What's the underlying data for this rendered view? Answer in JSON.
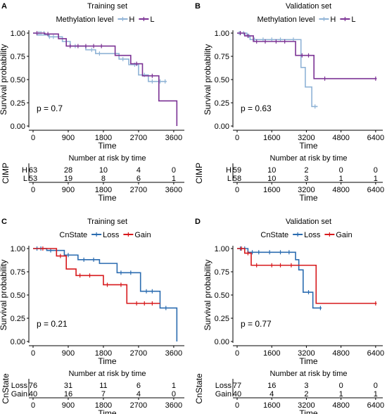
{
  "panels": [
    {
      "letter": "A",
      "title": "Training set",
      "legend_title": "Methylation level",
      "groups": [
        {
          "name": "H",
          "color": "#8fb3d6"
        },
        {
          "name": "L",
          "color": "#7b3294"
        }
      ],
      "pvalue": "p = 0.7",
      "ylabel": "Survival probability",
      "xlabel": "Time",
      "risk_title": "Number at risk by time",
      "risk_ylabel": "CIMP",
      "risk_counts": [
        [
          63,
          28,
          10,
          4,
          0
        ],
        [
          53,
          19,
          8,
          6,
          1
        ]
      ]
    },
    {
      "letter": "B",
      "title": "Validation set",
      "legend_title": "Methylation level",
      "groups": [
        {
          "name": "H",
          "color": "#8fb3d6"
        },
        {
          "name": "L",
          "color": "#7b3294"
        }
      ],
      "pvalue": "p = 0.63",
      "ylabel": "Survival probability",
      "xlabel": "Time",
      "risk_title": "Number at risk by time",
      "risk_ylabel": "CIMP",
      "risk_counts": [
        [
          59,
          10,
          2,
          0,
          0
        ],
        [
          58,
          10,
          3,
          1,
          1
        ]
      ]
    },
    {
      "letter": "C",
      "title": "Training set",
      "legend_title": "CnState",
      "groups": [
        {
          "name": "Loss",
          "color": "#2b6cb0"
        },
        {
          "name": "Gain",
          "color": "#d7191c"
        }
      ],
      "pvalue": "p = 0.21",
      "ylabel": "Survival probability",
      "xlabel": "Time",
      "risk_title": "Number at risk by time",
      "risk_ylabel": "CnState",
      "risk_counts": [
        [
          76,
          31,
          11,
          6,
          1
        ],
        [
          40,
          16,
          7,
          4,
          0
        ]
      ]
    },
    {
      "letter": "D",
      "title": "Validation set",
      "legend_title": "CnState",
      "groups": [
        {
          "name": "Loss",
          "color": "#2b6cb0"
        },
        {
          "name": "Gain",
          "color": "#d7191c"
        }
      ],
      "pvalue": "p = 0.77",
      "ylabel": "Survival probability",
      "xlabel": "Time",
      "risk_title": "Number at risk by time",
      "risk_ylabel": "CnState",
      "risk_counts": [
        [
          77,
          16,
          3,
          0,
          0
        ],
        [
          40,
          4,
          2,
          1,
          1
        ]
      ]
    }
  ],
  "chart_data": [
    {
      "type": "line",
      "subtype": "kaplan-meier",
      "title": "Training set",
      "xlabel": "Time",
      "ylabel": "Survival probability",
      "xticks": [
        0,
        900,
        1800,
        2700,
        3600
      ],
      "xlim": [
        0,
        3800
      ],
      "yticks": [
        0.0,
        0.25,
        0.5,
        0.75,
        1.0
      ],
      "ylim": [
        0,
        1
      ],
      "series": [
        {
          "name": "H",
          "steps": [
            [
              0,
              1.0
            ],
            [
              100,
              0.98
            ],
            [
              400,
              0.96
            ],
            [
              750,
              0.91
            ],
            [
              950,
              0.86
            ],
            [
              1350,
              0.82
            ],
            [
              1600,
              0.78
            ],
            [
              2200,
              0.72
            ],
            [
              2450,
              0.66
            ],
            [
              2700,
              0.55
            ],
            [
              2950,
              0.48
            ],
            [
              3420,
              0.48
            ]
          ],
          "censored": [
            [
              150,
              1.0
            ],
            [
              200,
              1.0
            ],
            [
              280,
              1.0
            ],
            [
              420,
              0.96
            ],
            [
              520,
              0.96
            ],
            [
              1080,
              0.86
            ],
            [
              1500,
              0.82
            ],
            [
              1700,
              0.78
            ],
            [
              2300,
              0.72
            ],
            [
              2600,
              0.66
            ],
            [
              2850,
              0.55
            ],
            [
              3050,
              0.48
            ],
            [
              3250,
              0.48
            ],
            [
              3380,
              0.48
            ]
          ]
        },
        {
          "name": "L",
          "steps": [
            [
              0,
              1.0
            ],
            [
              300,
              0.99
            ],
            [
              650,
              0.94
            ],
            [
              850,
              0.86
            ],
            [
              2100,
              0.76
            ],
            [
              2500,
              0.67
            ],
            [
              2800,
              0.54
            ],
            [
              3220,
              0.27
            ],
            [
              3680,
              0.0
            ]
          ],
          "censored": [
            [
              100,
              1.0
            ],
            [
              380,
              0.99
            ],
            [
              950,
              0.86
            ],
            [
              1150,
              0.86
            ],
            [
              1350,
              0.86
            ],
            [
              1550,
              0.86
            ],
            [
              1750,
              0.86
            ],
            [
              2650,
              0.67
            ],
            [
              3050,
              0.54
            ]
          ]
        }
      ]
    },
    {
      "type": "line",
      "subtype": "kaplan-meier",
      "title": "Validation set",
      "xlabel": "Time",
      "ylabel": "Survival probability",
      "xticks": [
        0,
        1600,
        3200,
        4800,
        6400
      ],
      "xlim": [
        0,
        6600
      ],
      "yticks": [
        0.0,
        0.25,
        0.5,
        0.75,
        1.0
      ],
      "ylim": [
        0,
        1
      ],
      "series": [
        {
          "name": "H",
          "steps": [
            [
              0,
              1.0
            ],
            [
              450,
              0.97
            ],
            [
              600,
              0.93
            ],
            [
              2950,
              0.63
            ],
            [
              3150,
              0.42
            ],
            [
              3450,
              0.21
            ],
            [
              3720,
              0.21
            ]
          ],
          "censored": [
            [
              100,
              1.0
            ],
            [
              300,
              1.0
            ],
            [
              550,
              0.97
            ],
            [
              800,
              0.93
            ],
            [
              1200,
              0.93
            ],
            [
              1600,
              0.93
            ],
            [
              2000,
              0.93
            ],
            [
              2600,
              0.93
            ],
            [
              3600,
              0.21
            ]
          ]
        },
        {
          "name": "L",
          "steps": [
            [
              0,
              1.0
            ],
            [
              350,
              0.97
            ],
            [
              750,
              0.91
            ],
            [
              2700,
              0.76
            ],
            [
              3550,
              0.51
            ],
            [
              6450,
              0.51
            ]
          ],
          "censored": [
            [
              150,
              1.0
            ],
            [
              500,
              0.97
            ],
            [
              900,
              0.91
            ],
            [
              1300,
              0.91
            ],
            [
              1800,
              0.91
            ],
            [
              2200,
              0.91
            ],
            [
              3000,
              0.76
            ],
            [
              3300,
              0.76
            ],
            [
              4050,
              0.51
            ],
            [
              6400,
              0.51
            ]
          ]
        }
      ]
    },
    {
      "type": "line",
      "subtype": "kaplan-meier",
      "title": "Training set",
      "xlabel": "Time",
      "ylabel": "Survival probability",
      "xticks": [
        0,
        900,
        1800,
        2700,
        3600
      ],
      "xlim": [
        0,
        3800
      ],
      "yticks": [
        0.0,
        0.25,
        0.5,
        0.75,
        1.0
      ],
      "ylim": [
        0,
        1
      ],
      "series": [
        {
          "name": "Loss",
          "steps": [
            [
              0,
              1.0
            ],
            [
              350,
              0.98
            ],
            [
              800,
              0.93
            ],
            [
              1150,
              0.88
            ],
            [
              1700,
              0.84
            ],
            [
              2150,
              0.74
            ],
            [
              2750,
              0.54
            ],
            [
              3250,
              0.36
            ],
            [
              3680,
              0.0
            ]
          ],
          "censored": [
            [
              100,
              1.0
            ],
            [
              200,
              1.0
            ],
            [
              450,
              0.98
            ],
            [
              900,
              0.93
            ],
            [
              1300,
              0.88
            ],
            [
              1550,
              0.88
            ],
            [
              2250,
              0.74
            ],
            [
              2500,
              0.74
            ],
            [
              2900,
              0.54
            ],
            [
              3050,
              0.54
            ],
            [
              3400,
              0.36
            ]
          ]
        },
        {
          "name": "Gain",
          "steps": [
            [
              0,
              1.0
            ],
            [
              600,
              0.92
            ],
            [
              850,
              0.78
            ],
            [
              1100,
              0.71
            ],
            [
              1800,
              0.61
            ],
            [
              2400,
              0.41
            ],
            [
              3250,
              0.41
            ]
          ],
          "censored": [
            [
              250,
              1.0
            ],
            [
              700,
              0.92
            ],
            [
              1200,
              0.71
            ],
            [
              1450,
              0.71
            ],
            [
              1900,
              0.61
            ],
            [
              2250,
              0.61
            ],
            [
              2650,
              0.41
            ],
            [
              2850,
              0.41
            ],
            [
              3050,
              0.41
            ]
          ]
        }
      ]
    },
    {
      "type": "line",
      "subtype": "kaplan-meier",
      "title": "Validation set",
      "xlabel": "Time",
      "ylabel": "Survival probability",
      "xticks": [
        0,
        1600,
        3200,
        4800,
        6400
      ],
      "xlim": [
        0,
        6600
      ],
      "yticks": [
        0.0,
        0.25,
        0.5,
        0.75,
        1.0
      ],
      "ylim": [
        0,
        1
      ],
      "series": [
        {
          "name": "Loss",
          "steps": [
            [
              0,
              1.0
            ],
            [
              500,
              0.96
            ],
            [
              2700,
              0.88
            ],
            [
              2850,
              0.77
            ],
            [
              3050,
              0.53
            ],
            [
              3500,
              0.36
            ],
            [
              3900,
              0.36
            ]
          ],
          "censored": [
            [
              150,
              1.0
            ],
            [
              350,
              1.0
            ],
            [
              700,
              0.96
            ],
            [
              1000,
              0.96
            ],
            [
              1500,
              0.96
            ],
            [
              2000,
              0.96
            ],
            [
              2400,
              0.96
            ],
            [
              3300,
              0.53
            ],
            [
              3850,
              0.36
            ]
          ]
        },
        {
          "name": "Gain",
          "steps": [
            [
              0,
              1.0
            ],
            [
              350,
              0.95
            ],
            [
              650,
              0.82
            ],
            [
              3650,
              0.41
            ],
            [
              6450,
              0.41
            ]
          ],
          "censored": [
            [
              200,
              1.0
            ],
            [
              500,
              0.95
            ],
            [
              900,
              0.82
            ],
            [
              1600,
              0.82
            ],
            [
              2000,
              0.82
            ],
            [
              2500,
              0.82
            ],
            [
              6400,
              0.41
            ]
          ]
        }
      ]
    }
  ]
}
